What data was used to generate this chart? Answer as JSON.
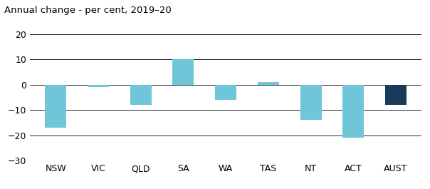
{
  "categories": [
    "NSW",
    "VIC",
    "QLD",
    "SA",
    "WA",
    "TAS",
    "NT",
    "ACT",
    "AUST"
  ],
  "values": [
    -17,
    -1,
    -8,
    10,
    -6,
    1,
    -14,
    -21,
    -8
  ],
  "bar_colors": [
    "#6ec6d8",
    "#6ec6d8",
    "#6ec6d8",
    "#6ec6d8",
    "#6ec6d8",
    "#6ec6d8",
    "#6ec6d8",
    "#6ec6d8",
    "#1a3a5c"
  ],
  "title": "Annual change - per cent, 2019–20",
  "ylim": [
    -30,
    20
  ],
  "yticks": [
    -30,
    -20,
    -10,
    0,
    10,
    20
  ],
  "title_fontsize": 9.5,
  "tick_fontsize": 9,
  "bar_width": 0.5,
  "background_color": "#ffffff"
}
